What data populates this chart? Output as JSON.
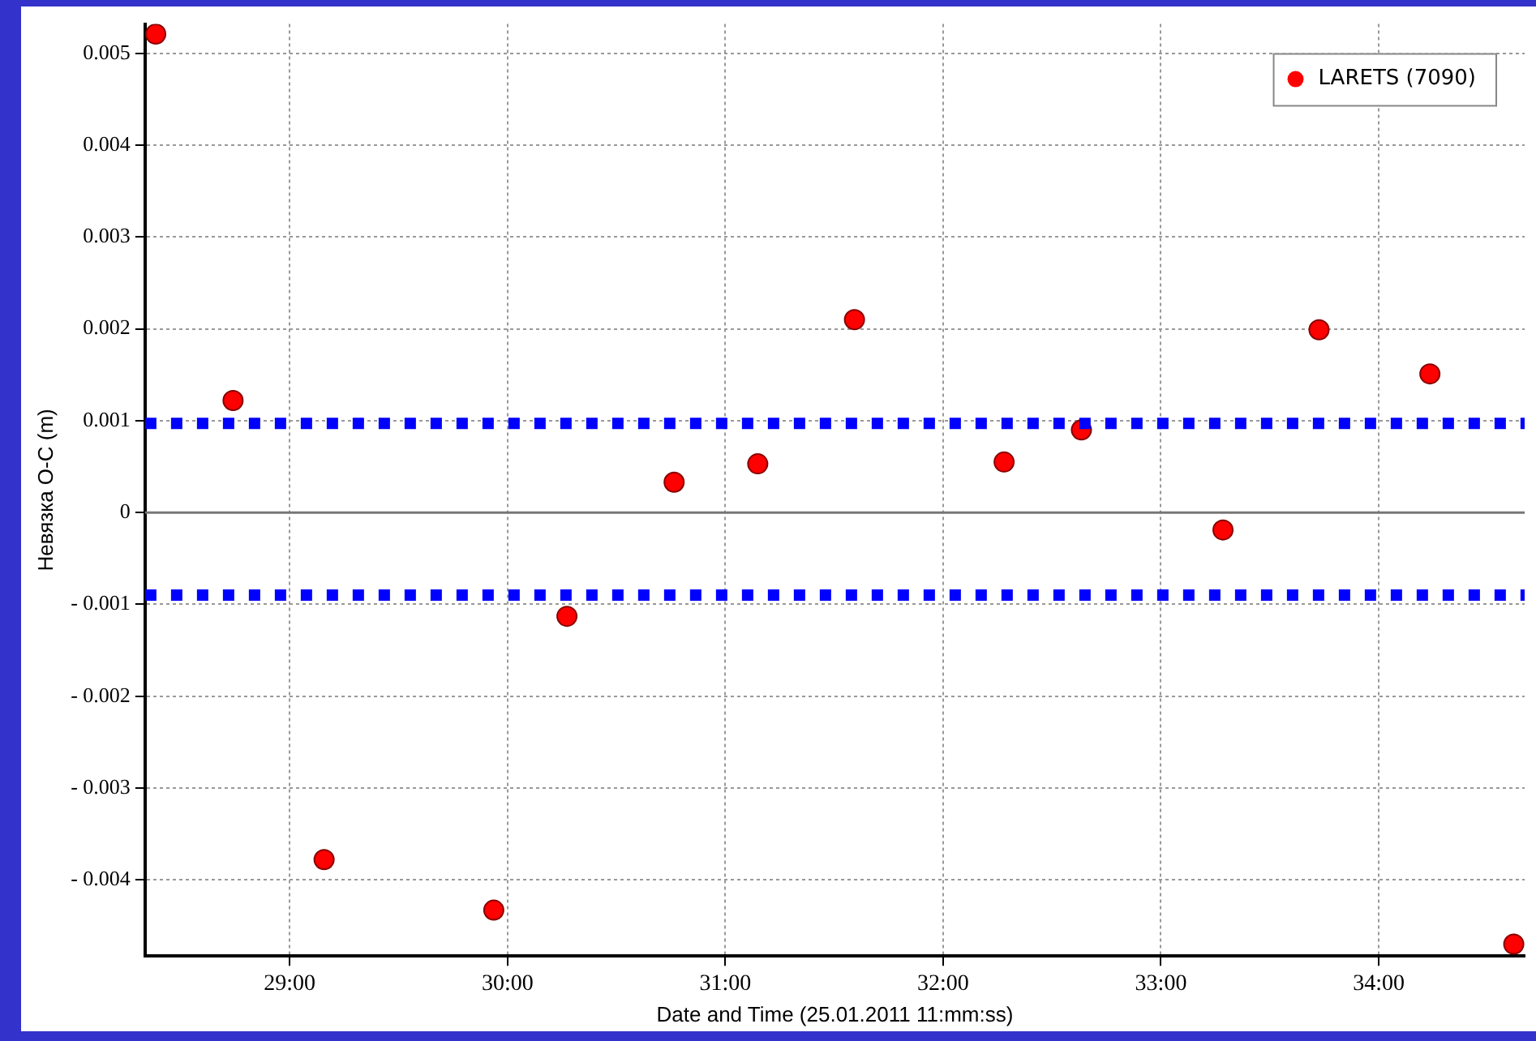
{
  "chart_data": {
    "type": "scatter",
    "xlabel": "Date and Time (25.01.2011 11:mm:ss)",
    "ylabel": "Невязка O-C (m)",
    "xlim": [
      28.336,
      34.67
    ],
    "xticks": [
      {
        "value": 29,
        "label": "29:00"
      },
      {
        "value": 30,
        "label": "30:00"
      },
      {
        "value": 31,
        "label": "31:00"
      },
      {
        "value": 32,
        "label": "32:00"
      },
      {
        "value": 33,
        "label": "33:00"
      },
      {
        "value": 34,
        "label": "34:00"
      }
    ],
    "ylim": [
      -0.00483,
      0.00532
    ],
    "yticks": [
      {
        "value": -0.004,
        "label": "- 0.004"
      },
      {
        "value": -0.003,
        "label": "- 0.003"
      },
      {
        "value": -0.002,
        "label": "- 0.002"
      },
      {
        "value": -0.001,
        "label": "- 0.001"
      },
      0,
      0.001,
      0.002,
      0.003,
      0.004,
      0.005
    ],
    "series": [
      {
        "name": "LARETS (7090)",
        "color": "#ff0000",
        "x": [
          28.385,
          28.74,
          29.158,
          29.937,
          30.273,
          30.765,
          31.149,
          31.593,
          32.28,
          32.635,
          33.285,
          33.726,
          34.235,
          34.62
        ],
        "values": [
          0.00521,
          0.00122,
          -0.00378,
          -0.00433,
          -0.00113,
          0.00033,
          0.00053,
          0.0021,
          0.00055,
          0.0009,
          -0.00019,
          0.00199,
          0.00151,
          -0.0047
        ]
      }
    ],
    "ref_lines": [
      {
        "axis": "y",
        "value": 0.00097,
        "color": "#0000ff",
        "line_style": "dotted"
      },
      {
        "axis": "y",
        "value": -0.0009,
        "color": "#0000ff",
        "line_style": "dotted"
      },
      {
        "axis": "y",
        "value": 0,
        "color": "#777777",
        "line_style": "solid"
      }
    ],
    "marker": "circle",
    "grid": true,
    "legend": "top right"
  }
}
